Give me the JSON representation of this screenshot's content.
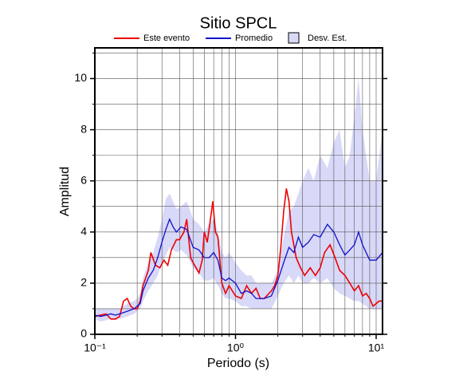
{
  "chart_data": {
    "type": "line",
    "title": "Sitio SPCL",
    "xlabel": "Periodo (s)",
    "ylabel": "Amplitud",
    "xscale": "log",
    "grid": true,
    "legend": "top",
    "xlim": [
      0.1,
      11.1
    ],
    "ylim": [
      0,
      11.2
    ],
    "xticks": [
      {
        "value": 0.1,
        "label": "10⁻¹"
      },
      {
        "value": 1,
        "label": "10⁰"
      },
      {
        "value": 10,
        "label": "10¹"
      }
    ],
    "xgrid": [
      0.2,
      0.3,
      0.4,
      0.5,
      0.6,
      0.7,
      0.8,
      0.9,
      1,
      2,
      3,
      4,
      5,
      6,
      7,
      8,
      9,
      10
    ],
    "yticks": [
      0,
      2,
      4,
      6,
      8,
      10
    ],
    "ygrid": [
      1,
      2,
      3,
      4,
      5,
      6,
      7,
      8,
      9,
      10,
      11
    ],
    "series": [
      {
        "name": "Este evento",
        "color": "#ee0000",
        "x": [
          0.1,
          0.11,
          0.12,
          0.13,
          0.14,
          0.15,
          0.16,
          0.17,
          0.18,
          0.19,
          0.2,
          0.21,
          0.22,
          0.24,
          0.25,
          0.27,
          0.29,
          0.31,
          0.33,
          0.35,
          0.38,
          0.4,
          0.43,
          0.45,
          0.48,
          0.5,
          0.55,
          0.58,
          0.6,
          0.63,
          0.66,
          0.69,
          0.72,
          0.75,
          0.8,
          0.85,
          0.9,
          1.0,
          1.1,
          1.2,
          1.3,
          1.4,
          1.5,
          1.6,
          1.8,
          1.9,
          2.0,
          2.1,
          2.2,
          2.3,
          2.4,
          2.5,
          2.7,
          2.9,
          3.1,
          3.4,
          3.7,
          4.0,
          4.3,
          4.7,
          5.1,
          5.5,
          6.0,
          6.5,
          7.0,
          7.5,
          8.0,
          8.5,
          9.0,
          9.5,
          10,
          10.5,
          11.1
        ],
        "values": [
          0.7,
          0.75,
          0.8,
          0.6,
          0.6,
          0.7,
          1.3,
          1.4,
          1.1,
          1.0,
          1.0,
          1.3,
          1.9,
          2.5,
          3.2,
          2.7,
          2.6,
          2.9,
          2.7,
          3.3,
          3.7,
          3.7,
          4.0,
          4.5,
          3.0,
          2.8,
          2.4,
          2.9,
          4.0,
          3.6,
          4.4,
          5.2,
          4.0,
          3.8,
          2.0,
          1.6,
          1.9,
          1.5,
          1.4,
          1.9,
          1.6,
          1.8,
          1.4,
          1.4,
          1.7,
          1.9,
          2.3,
          3.4,
          4.8,
          5.7,
          5.2,
          4.0,
          3.0,
          2.6,
          2.3,
          2.6,
          2.3,
          2.6,
          3.2,
          3.5,
          3.0,
          2.5,
          2.3,
          2.0,
          1.7,
          1.9,
          1.5,
          1.6,
          1.4,
          1.1,
          1.2,
          1.3,
          1.3
        ]
      },
      {
        "name": "Promedio",
        "color": "#1111cc",
        "x": [
          0.1,
          0.11,
          0.12,
          0.13,
          0.14,
          0.15,
          0.17,
          0.19,
          0.2,
          0.21,
          0.22,
          0.24,
          0.26,
          0.28,
          0.3,
          0.32,
          0.34,
          0.36,
          0.38,
          0.41,
          0.45,
          0.5,
          0.55,
          0.6,
          0.65,
          0.7,
          0.75,
          0.8,
          0.85,
          0.9,
          1.0,
          1.1,
          1.2,
          1.3,
          1.4,
          1.6,
          1.8,
          2.0,
          2.2,
          2.4,
          2.6,
          2.8,
          3.0,
          3.3,
          3.6,
          4.0,
          4.5,
          5.0,
          5.5,
          6.0,
          6.5,
          7.0,
          7.5,
          8.0,
          9.0,
          10,
          11.1
        ],
        "values": [
          0.75,
          0.7,
          0.75,
          0.8,
          0.75,
          0.8,
          0.9,
          1.0,
          1.1,
          1.2,
          1.7,
          2.2,
          2.5,
          3.0,
          3.6,
          4.1,
          4.5,
          4.2,
          4.0,
          4.2,
          4.1,
          3.4,
          3.3,
          3.0,
          3.0,
          3.2,
          2.9,
          2.2,
          2.1,
          2.2,
          2.0,
          1.6,
          1.7,
          1.6,
          1.4,
          1.4,
          1.5,
          2.1,
          2.8,
          3.4,
          3.2,
          3.8,
          3.4,
          3.6,
          3.9,
          3.8,
          4.3,
          4.0,
          3.5,
          3.1,
          3.3,
          3.5,
          4.0,
          3.5,
          2.9,
          2.9,
          3.2
        ]
      }
    ],
    "band": {
      "name": "Desv. Est.",
      "color": "#d8d8f8",
      "lower": [
        0.6,
        0.5,
        0.55,
        0.6,
        0.55,
        0.6,
        0.7,
        0.8,
        0.9,
        1.0,
        1.3,
        1.7,
        2.0,
        2.3,
        2.8,
        3.1,
        3.4,
        3.3,
        3.2,
        3.3,
        3.1,
        2.6,
        2.4,
        2.1,
        2.1,
        2.2,
        1.9,
        1.6,
        1.4,
        1.4,
        1.3,
        1.1,
        1.1,
        1.0,
        1.0,
        1.0,
        1.0,
        1.5,
        2.0,
        2.3,
        2.0,
        2.3,
        2.0,
        2.0,
        2.2,
        2.0,
        2.2,
        1.8,
        1.6,
        1.5,
        1.4,
        1.3,
        1.3,
        1.2,
        1.0,
        1.0,
        1.0
      ],
      "upper": [
        1.0,
        1.0,
        1.0,
        1.0,
        1.0,
        1.0,
        1.2,
        1.3,
        1.4,
        1.6,
        2.2,
        2.8,
        3.2,
        3.8,
        4.5,
        5.3,
        5.5,
        5.2,
        4.9,
        5.0,
        5.2,
        4.5,
        4.3,
        4.0,
        4.3,
        4.5,
        4.0,
        3.2,
        3.0,
        3.2,
        2.8,
        2.5,
        2.3,
        2.3,
        2.0,
        2.0,
        2.0,
        2.5,
        3.8,
        4.8,
        5.0,
        5.5,
        6.0,
        6.5,
        6.0,
        7.0,
        6.5,
        7.5,
        8.0,
        6.5,
        7.0,
        8.5,
        10.0,
        8.0,
        6.0,
        6.0,
        8.0
      ]
    }
  }
}
